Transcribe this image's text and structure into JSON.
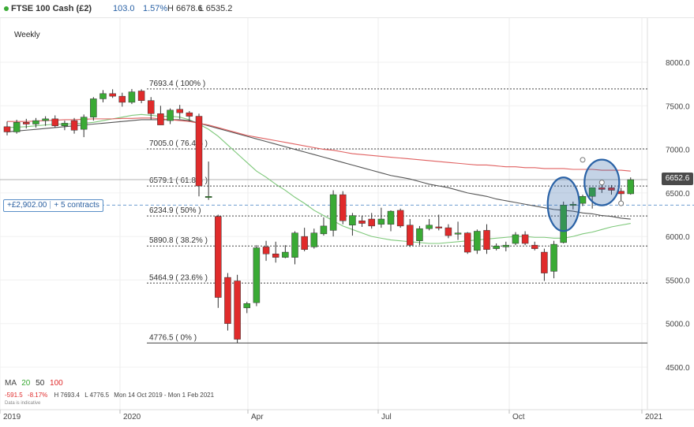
{
  "header": {
    "instrument": "FTSE 100 Cash (£2)",
    "change": "103.0",
    "change_pct": "1.57%",
    "high": "H 6678.6",
    "low": "L 6535.2"
  },
  "timeframe": "Weekly",
  "position": {
    "pnl": "+£2,902.00",
    "size": "+ 5 contracts"
  },
  "last_price": "6652.6",
  "ma_legend": {
    "label": "MA",
    "periods": [
      "20",
      "50",
      "100"
    ]
  },
  "stats": {
    "change_pts": "-591.5",
    "change_pct": "-8.17%",
    "high": "H 7693.4",
    "low": "L 4776.5",
    "range": "Mon 14 Oct 2019 - Mon 1 Feb 2021"
  },
  "disclaimer": "Data is indicative",
  "colors": {
    "up": "#3aaa35",
    "down": "#e02b2b",
    "ma20": "#7ec87a",
    "ma50": "#555555",
    "ma100": "#e06060",
    "highlight": "#2a62a6"
  },
  "chart_data": {
    "type": "candlestick",
    "y_ticks": [
      4500,
      5000,
      5500,
      6000,
      6500,
      7000,
      7500,
      8000
    ],
    "y_tick_labels": [
      "4500.0",
      "5000.0",
      "5500.0",
      "6000.0",
      "6500.0",
      "7000.0",
      "7500.0",
      "8000.0"
    ],
    "ylim": [
      4350,
      8200
    ],
    "x_tick_labels": [
      "2019",
      "2020",
      "Apr",
      "Jul",
      "Oct",
      "2021"
    ],
    "fib_levels": [
      {
        "value": 7693.4,
        "label": "7693.4 ( 100% )"
      },
      {
        "value": 7005.0,
        "label": "7005.0 ( 76.4% )"
      },
      {
        "value": 6579.1,
        "label": "6579.1 ( 61.8% )"
      },
      {
        "value": 6234.9,
        "label": "6234.9 ( 50% )"
      },
      {
        "value": 5890.8,
        "label": "5890.8 ( 38.2% )"
      },
      {
        "value": 5464.9,
        "label": "5464.9 ( 23.6% )"
      },
      {
        "value": 4776.5,
        "label": "4776.5 ( 0% )"
      }
    ],
    "position_level": 6360,
    "last_price": 6652.6,
    "candles": [
      {
        "o": 7260,
        "h": 7320,
        "l": 7160,
        "c": 7200
      },
      {
        "o": 7200,
        "h": 7340,
        "l": 7180,
        "c": 7310
      },
      {
        "o": 7310,
        "h": 7350,
        "l": 7240,
        "c": 7290
      },
      {
        "o": 7290,
        "h": 7360,
        "l": 7250,
        "c": 7330
      },
      {
        "o": 7330,
        "h": 7380,
        "l": 7270,
        "c": 7350
      },
      {
        "o": 7350,
        "h": 7390,
        "l": 7250,
        "c": 7270
      },
      {
        "o": 7270,
        "h": 7330,
        "l": 7220,
        "c": 7300
      },
      {
        "o": 7330,
        "h": 7360,
        "l": 7180,
        "c": 7220
      },
      {
        "o": 7230,
        "h": 7400,
        "l": 7140,
        "c": 7370
      },
      {
        "o": 7370,
        "h": 7600,
        "l": 7330,
        "c": 7580
      },
      {
        "o": 7580,
        "h": 7680,
        "l": 7540,
        "c": 7640
      },
      {
        "o": 7640,
        "h": 7690,
        "l": 7590,
        "c": 7610
      },
      {
        "o": 7610,
        "h": 7650,
        "l": 7490,
        "c": 7540
      },
      {
        "o": 7540,
        "h": 7693,
        "l": 7520,
        "c": 7660
      },
      {
        "o": 7670,
        "h": 7690,
        "l": 7530,
        "c": 7560
      },
      {
        "o": 7560,
        "h": 7600,
        "l": 7340,
        "c": 7410
      },
      {
        "o": 7410,
        "h": 7500,
        "l": 7280,
        "c": 7280
      },
      {
        "o": 7330,
        "h": 7470,
        "l": 7290,
        "c": 7450
      },
      {
        "o": 7460,
        "h": 7510,
        "l": 7350,
        "c": 7420
      },
      {
        "o": 7420,
        "h": 7440,
        "l": 7320,
        "c": 7380
      },
      {
        "o": 7380,
        "h": 7410,
        "l": 6460,
        "c": 6580
      },
      {
        "o": 6460,
        "h": 6860,
        "l": 6420,
        "c": 6460
      },
      {
        "o": 6230,
        "h": 6250,
        "l": 5180,
        "c": 5300
      },
      {
        "o": 5530,
        "h": 5580,
        "l": 4920,
        "c": 5000
      },
      {
        "o": 5490,
        "h": 5560,
        "l": 4776,
        "c": 4820
      },
      {
        "o": 5180,
        "h": 5250,
        "l": 5120,
        "c": 5230
      },
      {
        "o": 5240,
        "h": 5900,
        "l": 5200,
        "c": 5870
      },
      {
        "o": 5880,
        "h": 5950,
        "l": 5720,
        "c": 5800
      },
      {
        "o": 5800,
        "h": 5940,
        "l": 5700,
        "c": 5760
      },
      {
        "o": 5760,
        "h": 5900,
        "l": 5750,
        "c": 5820
      },
      {
        "o": 5760,
        "h": 6060,
        "l": 5680,
        "c": 6040
      },
      {
        "o": 6000,
        "h": 6100,
        "l": 5830,
        "c": 5850
      },
      {
        "o": 5880,
        "h": 6090,
        "l": 5860,
        "c": 6040
      },
      {
        "o": 6030,
        "h": 6220,
        "l": 6010,
        "c": 6120
      },
      {
        "o": 6070,
        "h": 6530,
        "l": 6000,
        "c": 6480
      },
      {
        "o": 6480,
        "h": 6520,
        "l": 6140,
        "c": 6180
      },
      {
        "o": 6130,
        "h": 6270,
        "l": 6010,
        "c": 6240
      },
      {
        "o": 6180,
        "h": 6240,
        "l": 6110,
        "c": 6150
      },
      {
        "o": 6200,
        "h": 6270,
        "l": 6090,
        "c": 6120
      },
      {
        "o": 6140,
        "h": 6330,
        "l": 6100,
        "c": 6200
      },
      {
        "o": 6140,
        "h": 6300,
        "l": 6060,
        "c": 6290
      },
      {
        "o": 6300,
        "h": 6320,
        "l": 6100,
        "c": 6120
      },
      {
        "o": 6130,
        "h": 6200,
        "l": 5880,
        "c": 5900
      },
      {
        "o": 5950,
        "h": 6120,
        "l": 5900,
        "c": 6090
      },
      {
        "o": 6090,
        "h": 6200,
        "l": 6070,
        "c": 6130
      },
      {
        "o": 6110,
        "h": 6250,
        "l": 6070,
        "c": 6100
      },
      {
        "o": 6100,
        "h": 6140,
        "l": 5980,
        "c": 6010
      },
      {
        "o": 6040,
        "h": 6170,
        "l": 5960,
        "c": 6040
      },
      {
        "o": 6040,
        "h": 6050,
        "l": 5800,
        "c": 5820
      },
      {
        "o": 5840,
        "h": 6080,
        "l": 5800,
        "c": 6060
      },
      {
        "o": 6070,
        "h": 6140,
        "l": 5800,
        "c": 5850
      },
      {
        "o": 5860,
        "h": 5920,
        "l": 5840,
        "c": 5890
      },
      {
        "o": 5880,
        "h": 5940,
        "l": 5830,
        "c": 5900
      },
      {
        "o": 5920,
        "h": 6050,
        "l": 5900,
        "c": 6020
      },
      {
        "o": 6020,
        "h": 6060,
        "l": 5900,
        "c": 5920
      },
      {
        "o": 5900,
        "h": 5940,
        "l": 5840,
        "c": 5860
      },
      {
        "o": 5820,
        "h": 5860,
        "l": 5490,
        "c": 5580
      },
      {
        "o": 5600,
        "h": 5950,
        "l": 5520,
        "c": 5910
      },
      {
        "o": 5930,
        "h": 6400,
        "l": 5920,
        "c": 6360
      },
      {
        "o": 6360,
        "h": 6400,
        "l": 6310,
        "c": 6370
      },
      {
        "o": 6380,
        "h": 6480,
        "l": 6350,
        "c": 6460
      },
      {
        "o": 6460,
        "h": 6560,
        "l": 6320,
        "c": 6560
      },
      {
        "o": 6560,
        "h": 6620,
        "l": 6500,
        "c": 6540
      },
      {
        "o": 6560,
        "h": 6590,
        "l": 6480,
        "c": 6530
      },
      {
        "o": 6520,
        "h": 6560,
        "l": 6350,
        "c": 6490
      },
      {
        "o": 6490,
        "h": 6678,
        "l": 6480,
        "c": 6652
      }
    ],
    "series": [
      {
        "name": "20",
        "values": [
          7250,
          7255,
          7260,
          7270,
          7280,
          7290,
          7290,
          7295,
          7300,
          7310,
          7330,
          7350,
          7370,
          7390,
          7400,
          7390,
          7380,
          7380,
          7370,
          7340,
          7290,
          7230,
          7150,
          7050,
          6950,
          6850,
          6750,
          6680,
          6600,
          6530,
          6450,
          6380,
          6300,
          6240,
          6180,
          6120,
          6080,
          6040,
          6000,
          5980,
          5960,
          5950,
          5940,
          5930,
          5920,
          5920,
          5930,
          5940,
          5950,
          5960,
          5970,
          5980,
          5990,
          6000,
          6000,
          5990,
          5990,
          5980,
          5980,
          6000,
          6030,
          6050,
          6080,
          6110,
          6130,
          6150
        ]
      },
      {
        "name": "50",
        "values": [
          7200,
          7210,
          7220,
          7230,
          7240,
          7250,
          7260,
          7270,
          7280,
          7290,
          7300,
          7310,
          7320,
          7330,
          7340,
          7340,
          7340,
          7340,
          7340,
          7330,
          7300,
          7270,
          7240,
          7210,
          7180,
          7150,
          7120,
          7090,
          7060,
          7030,
          7000,
          6970,
          6940,
          6910,
          6880,
          6850,
          6820,
          6790,
          6760,
          6730,
          6700,
          6680,
          6660,
          6630,
          6600,
          6580,
          6560,
          6530,
          6500,
          6480,
          6460,
          6430,
          6410,
          6390,
          6370,
          6350,
          6330,
          6310,
          6300,
          6290,
          6270,
          6260,
          6240,
          6230,
          6210,
          6200
        ]
      },
      {
        "name": "100",
        "values": [
          7320,
          7320,
          7320,
          7325,
          7330,
          7335,
          7340,
          7340,
          7345,
          7350,
          7350,
          7350,
          7355,
          7355,
          7360,
          7360,
          7350,
          7340,
          7330,
          7320,
          7300,
          7280,
          7250,
          7220,
          7190,
          7160,
          7140,
          7120,
          7100,
          7080,
          7060,
          7040,
          7020,
          7000,
          6990,
          6970,
          6950,
          6940,
          6930,
          6920,
          6910,
          6900,
          6890,
          6880,
          6870,
          6860,
          6850,
          6840,
          6830,
          6820,
          6820,
          6810,
          6800,
          6800,
          6790,
          6790,
          6780,
          6780,
          6780,
          6770,
          6770,
          6770,
          6760,
          6760,
          6760,
          6750
        ]
      }
    ]
  }
}
